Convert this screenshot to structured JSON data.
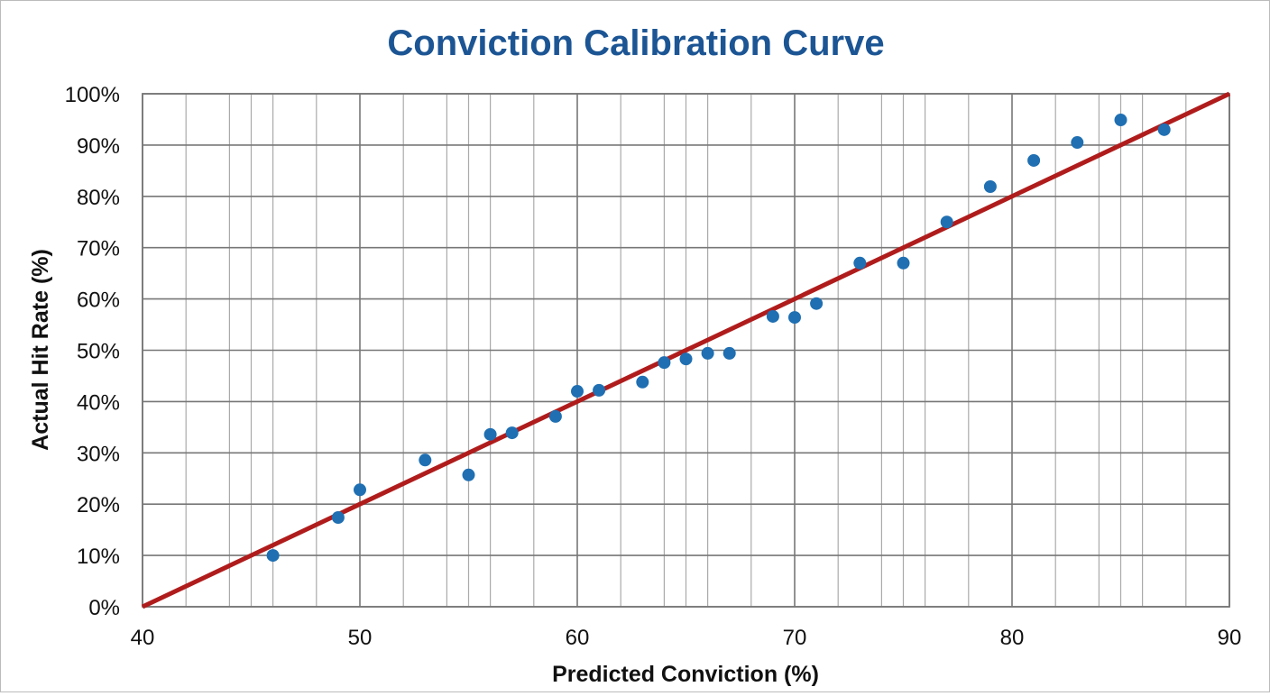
{
  "chart_data": {
    "type": "scatter",
    "title": "Conviction Calibration Curve",
    "xlabel": "Predicted Conviction (%)",
    "ylabel": "Actual Hit Rate (%)",
    "xlim": [
      40,
      90
    ],
    "ylim": [
      0,
      100
    ],
    "xticks": [
      40,
      50,
      60,
      70,
      80,
      90
    ],
    "xtick_labels": [
      "40",
      "50",
      "60",
      "70",
      "80",
      "90"
    ],
    "yticks": [
      0,
      10,
      20,
      30,
      40,
      50,
      60,
      70,
      80,
      90,
      100
    ],
    "ytick_labels": [
      "0%",
      "10%",
      "20%",
      "30%",
      "40%",
      "50%",
      "60%",
      "70%",
      "80%",
      "90%",
      "100%"
    ],
    "grid": true,
    "points": {
      "x": [
        46,
        49,
        50,
        53,
        55,
        56,
        57,
        59,
        60,
        61,
        63,
        64,
        65,
        66,
        67,
        69,
        70,
        71,
        73,
        75,
        77,
        79,
        81,
        83,
        85,
        87
      ],
      "y": [
        10,
        17.4,
        22.8,
        28.6,
        25.7,
        33.6,
        33.9,
        37.1,
        42.0,
        42.2,
        43.8,
        47.6,
        48.3,
        49.4,
        49.4,
        56.6,
        56.4,
        59.1,
        67.0,
        67.0,
        75.0,
        81.9,
        87.0,
        90.5,
        94.9,
        93.0
      ]
    },
    "reference_line": {
      "x": [
        40,
        90
      ],
      "y": [
        0,
        100
      ]
    },
    "colors": {
      "points": "#1f6fb2",
      "line": "#b01c1c",
      "title": "#1c5594",
      "grid": "#9a9a9a"
    }
  }
}
